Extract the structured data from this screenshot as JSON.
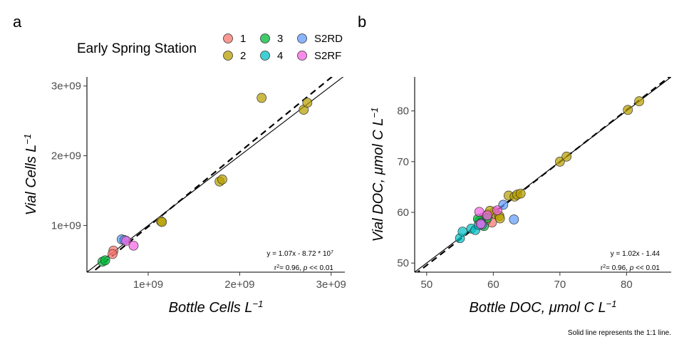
{
  "legend": {
    "title": "Early Spring Station",
    "items": [
      {
        "label": "1",
        "color": "#F8766D"
      },
      {
        "label": "2",
        "color": "#B79F00"
      },
      {
        "label": "3",
        "color": "#00BA38"
      },
      {
        "label": "4",
        "color": "#00BFC4"
      },
      {
        "label": "S2RD",
        "color": "#619CFF"
      },
      {
        "label": "S2RF",
        "color": "#F564E3"
      }
    ]
  },
  "footnote": "Solid line represents the 1:1 line.",
  "chart_data": [
    {
      "panel": "a",
      "type": "scatter",
      "xlabel": "Bottle Cells L",
      "ylabel": "Vial Cells L",
      "unit_exponent": "−1",
      "xlim": [
        330000000,
        3150000000
      ],
      "ylim": [
        330000000,
        3130000000
      ],
      "xticks": [
        {
          "v": 1000000000,
          "label": "1e+09"
        },
        {
          "v": 2000000000,
          "label": "2e+09"
        },
        {
          "v": 3000000000,
          "label": "3e+09"
        }
      ],
      "yticks": [
        {
          "v": 1000000000,
          "label": "1e+09"
        },
        {
          "v": 2000000000,
          "label": "2e+09"
        },
        {
          "v": 3000000000,
          "label": "3e+09"
        }
      ],
      "one_to_one_line": true,
      "fit": {
        "slope": 1.07,
        "intercept": -87200000
      },
      "equation": {
        "prefix": "y = 1.07x - 8.72 * 10",
        "sup": "7",
        "r2_prefix": "r",
        "r2_sup": "2",
        "r2_value": "= 0.96, ",
        "p_symbol": "p",
        "p_text": " << 0.01"
      },
      "series": [
        {
          "name": "1",
          "points": [
            [
              620000000,
              640000000
            ],
            [
              610000000,
              590000000
            ]
          ]
        },
        {
          "name": "2",
          "points": [
            [
              1140000000,
              1060000000
            ],
            [
              1150000000,
              1050000000
            ],
            [
              1780000000,
              1630000000
            ],
            [
              1810000000,
              1660000000
            ],
            [
              2240000000,
              2830000000
            ],
            [
              2700000000,
              2660000000
            ],
            [
              2740000000,
              2760000000
            ]
          ]
        },
        {
          "name": "3",
          "points": [
            [
              500000000,
              480000000
            ],
            [
              530000000,
              500000000
            ]
          ]
        },
        {
          "name": "4",
          "points": []
        },
        {
          "name": "S2RD",
          "points": [
            [
              710000000,
              800000000
            ],
            [
              740000000,
              790000000
            ]
          ]
        },
        {
          "name": "S2RF",
          "points": [
            [
              760000000,
              780000000
            ],
            [
              840000000,
              710000000
            ]
          ]
        }
      ]
    },
    {
      "panel": "b",
      "type": "scatter",
      "xlabel": "Bottle DOC, μmol C L",
      "ylabel": "Vial DOC, μmol C L",
      "unit_exponent": "−1",
      "xlim": [
        48.2,
        86.7
      ],
      "ylim": [
        48.2,
        86.7
      ],
      "xticks": [
        {
          "v": 50,
          "label": "50"
        },
        {
          "v": 60,
          "label": "60"
        },
        {
          "v": 70,
          "label": "70"
        },
        {
          "v": 80,
          "label": "80"
        }
      ],
      "yticks": [
        {
          "v": 50,
          "label": "50"
        },
        {
          "v": 60,
          "label": "60"
        },
        {
          "v": 70,
          "label": "70"
        },
        {
          "v": 80,
          "label": "80"
        }
      ],
      "one_to_one_line": true,
      "fit": {
        "slope": 1.02,
        "intercept": -1.44
      },
      "equation": {
        "prefix": "y = 1.02x - 1.44",
        "sup": "",
        "r2_prefix": "r",
        "r2_sup": "2",
        "r2_value": "= 0.96, ",
        "p_symbol": "p",
        "p_text": " << 0.01"
      },
      "series": [
        {
          "name": "1",
          "points": [
            [
              58.5,
              59.0
            ],
            [
              59.2,
              59.6
            ],
            [
              59.8,
              58.0
            ],
            [
              60.2,
              60.1
            ],
            [
              58.9,
              58.4
            ]
          ]
        },
        {
          "name": "2",
          "points": [
            [
              62.3,
              63.3
            ],
            [
              63.2,
              63.1
            ],
            [
              63.6,
              63.5
            ],
            [
              64.1,
              63.7
            ],
            [
              60.3,
              59.7
            ],
            [
              60.9,
              59.3
            ],
            [
              61.0,
              58.8
            ],
            [
              59.5,
              60.3
            ],
            [
              70.0,
              70.0
            ],
            [
              71.0,
              71.0
            ],
            [
              80.2,
              80.2
            ],
            [
              81.9,
              81.9
            ]
          ]
        },
        {
          "name": "3",
          "points": [
            [
              57.9,
              58.3
            ],
            [
              58.6,
              57.3
            ],
            [
              59.1,
              58.9
            ],
            [
              57.7,
              58.7
            ]
          ]
        },
        {
          "name": "4",
          "points": [
            [
              55.0,
              54.9
            ],
            [
              55.4,
              56.2
            ],
            [
              56.7,
              56.8
            ],
            [
              57.3,
              56.5
            ],
            [
              57.8,
              57.5
            ],
            [
              58.2,
              57.9
            ]
          ]
        },
        {
          "name": "S2RD",
          "points": [
            [
              61.5,
              61.5
            ],
            [
              63.1,
              58.6
            ],
            [
              58.3,
              57.6
            ]
          ]
        },
        {
          "name": "S2RF",
          "points": [
            [
              57.9,
              60.1
            ],
            [
              59.1,
              59.4
            ],
            [
              60.6,
              60.4
            ],
            [
              58.1,
              57.7
            ]
          ]
        }
      ]
    }
  ]
}
